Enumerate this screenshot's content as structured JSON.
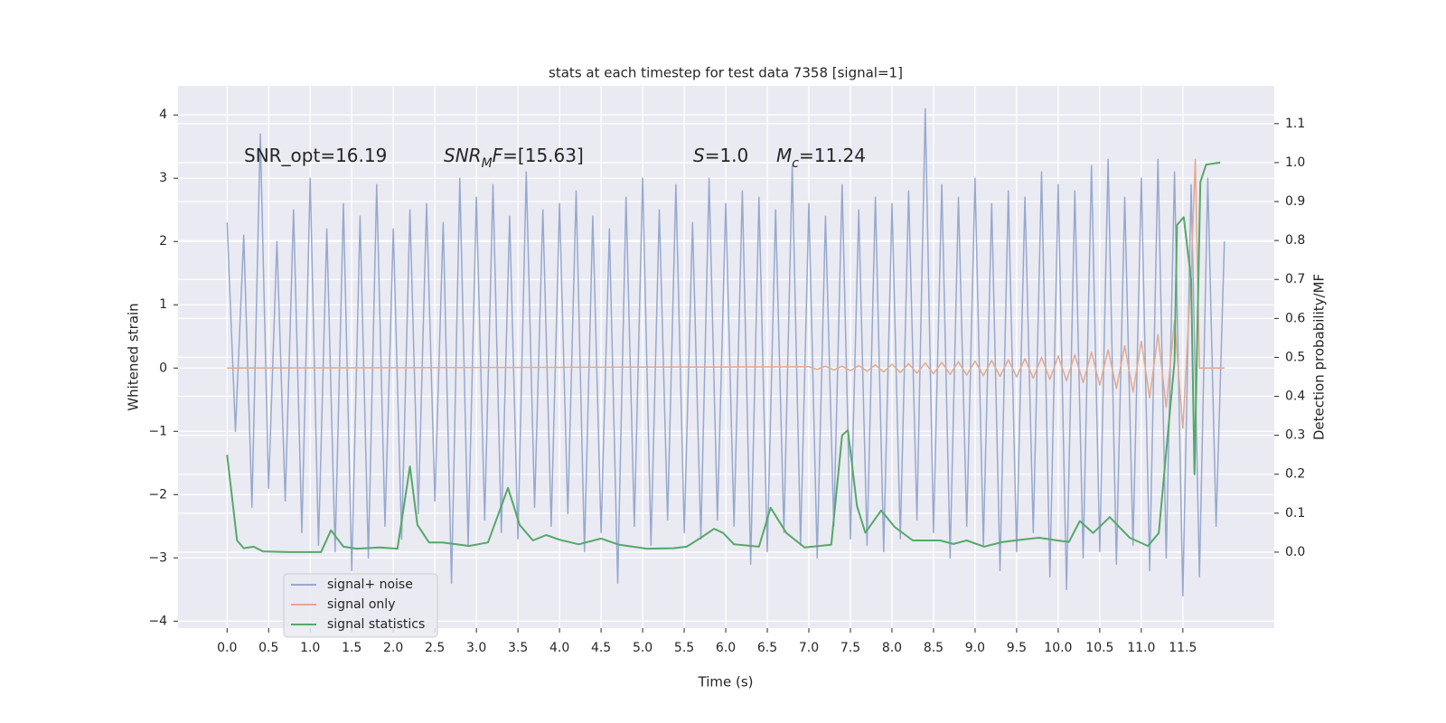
{
  "chart_data": {
    "type": "line",
    "title": "stats at each timestep for test data 7358 [signal=1]",
    "x_label": "Time (s)",
    "y_label": "Whitened strain",
    "y2_label": "Detection probability/MF",
    "annotations": [
      {
        "segments": [
          {
            "text": "SNR_opt=16.19"
          }
        ]
      },
      {
        "segments": [
          {
            "text": "SNR",
            "italic": true
          },
          {
            "text": "M",
            "italic": true,
            "sub": true
          },
          {
            "text": "F",
            "italic": true
          },
          {
            "text": "=[15.63]"
          }
        ]
      },
      {
        "segments": [
          {
            "text": "S",
            "italic": true
          },
          {
            "text": "=1.0"
          }
        ]
      },
      {
        "segments": [
          {
            "text": "M",
            "italic": true
          },
          {
            "text": "c",
            "italic": true,
            "sub": true
          },
          {
            "text": "=11.24"
          }
        ]
      }
    ],
    "xlim": [
      -0.59,
      12.6
    ],
    "ylim": [
      -4.11,
      4.46
    ],
    "y2lim": [
      -0.195,
      1.197
    ],
    "xticks": [
      {
        "value": 0,
        "label": "0.0"
      },
      0.5,
      {
        "value": 1,
        "label": "1.0"
      },
      1.5,
      {
        "value": 2,
        "label": "2.0"
      },
      2.5,
      {
        "value": 3,
        "label": "3.0"
      },
      3.5,
      {
        "value": 4,
        "label": "4.0"
      },
      4.5,
      {
        "value": 5,
        "label": "5.0"
      },
      5.5,
      {
        "value": 6,
        "label": "6.0"
      },
      6.5,
      {
        "value": 7,
        "label": "7.0"
      },
      7.5,
      {
        "value": 8,
        "label": "8.0"
      },
      8.5,
      {
        "value": 9,
        "label": "9.0"
      },
      9.5,
      {
        "value": 10,
        "label": "10.0"
      },
      10.5,
      {
        "value": 11,
        "label": "11.0"
      },
      11.5
    ],
    "yticks": [
      {
        "value": -4,
        "label": "−4"
      },
      {
        "value": -3,
        "label": "−3"
      },
      {
        "value": -2,
        "label": "−2"
      },
      {
        "value": -1,
        "label": "−1"
      },
      0,
      1,
      2,
      3,
      4
    ],
    "y2ticks": [
      {
        "value": 0,
        "label": "0.0"
      },
      0.1,
      0.2,
      0.3,
      0.4,
      0.5,
      0.6,
      0.7,
      0.8,
      0.9,
      {
        "value": 1,
        "label": "1.0"
      },
      1.1
    ],
    "grid": true,
    "legend": "lower left",
    "series": [
      {
        "name": "signal+ noise",
        "color": "#97a9cf",
        "x": [
          0,
          0.1,
          0.2,
          0.3,
          0.4,
          0.5,
          0.6,
          0.7,
          0.8,
          0.9,
          1,
          1.1,
          1.2,
          1.3,
          1.4,
          1.5,
          1.6,
          1.7,
          1.8,
          1.9,
          2,
          2.1,
          2.2,
          2.3,
          2.4,
          2.5,
          2.6,
          2.7,
          2.8,
          2.9,
          3,
          3.1,
          3.2,
          3.3,
          3.4,
          3.5,
          3.6,
          3.7,
          3.8,
          3.9,
          4,
          4.1,
          4.2,
          4.3,
          4.4,
          4.5,
          4.6,
          4.7,
          4.8,
          4.9,
          5,
          5.1,
          5.2,
          5.3,
          5.4,
          5.5,
          5.6,
          5.7,
          5.8,
          5.9,
          6,
          6.1,
          6.2,
          6.3,
          6.4,
          6.5,
          6.6,
          6.7,
          6.8,
          6.9,
          7,
          7.1,
          7.2,
          7.3,
          7.4,
          7.5,
          7.6,
          7.7,
          7.8,
          7.9,
          8,
          8.1,
          8.2,
          8.3,
          8.4,
          8.5,
          8.6,
          8.7,
          8.8,
          8.9,
          9,
          9.1,
          9.2,
          9.3,
          9.4,
          9.5,
          9.6,
          9.7,
          9.8,
          9.9,
          10,
          10.1,
          10.2,
          10.3,
          10.4,
          10.5,
          10.6,
          10.7,
          10.8,
          10.9,
          11,
          11.1,
          11.2,
          11.3,
          11.4,
          11.5,
          11.6,
          11.7,
          11.8,
          11.9,
          12
        ],
        "values": [
          2.3,
          -1.0,
          2.1,
          -2.2,
          3.7,
          -1.9,
          2.0,
          -2.1,
          2.5,
          -2.6,
          3.0,
          -2.8,
          2.2,
          -2.9,
          2.6,
          -3.2,
          2.4,
          -3.0,
          2.9,
          -2.5,
          2.2,
          -2.7,
          2.5,
          -2.3,
          2.6,
          -2.1,
          2.3,
          -3.4,
          3.0,
          -2.8,
          2.7,
          -2.4,
          2.9,
          -2.6,
          2.4,
          -2.7,
          3.1,
          -2.2,
          2.5,
          -2.5,
          2.6,
          -2.3,
          2.8,
          -2.9,
          2.4,
          -2.6,
          2.2,
          -3.4,
          2.7,
          -2.5,
          3.0,
          -2.8,
          2.5,
          -2.4,
          2.9,
          -2.6,
          2.3,
          -2.7,
          3.0,
          -2.4,
          2.6,
          -2.5,
          2.8,
          -3.1,
          2.7,
          -2.9,
          2.5,
          -2.6,
          3.2,
          -2.8,
          2.6,
          -3.0,
          2.4,
          -2.5,
          2.9,
          -2.7,
          2.5,
          -2.8,
          2.7,
          -2.9,
          2.6,
          -2.7,
          2.8,
          -2.4,
          4.1,
          -2.6,
          2.9,
          -3.0,
          2.7,
          -2.5,
          3.0,
          -2.8,
          2.6,
          -3.2,
          2.8,
          -2.9,
          2.7,
          -2.6,
          3.1,
          -3.3,
          2.9,
          -3.5,
          2.8,
          -3.0,
          3.2,
          -2.9,
          3.3,
          -3.1,
          2.7,
          -2.8,
          3.0,
          -3.2,
          3.3,
          -3.0,
          3.1,
          -3.6,
          2.9,
          -3.3,
          3.0,
          -2.5,
          2.0
        ]
      },
      {
        "name": "signal only",
        "color": "#e4a98f",
        "x": [
          0,
          7,
          7.1,
          7.2,
          7.3,
          7.4,
          7.5,
          7.6,
          7.7,
          7.8,
          7.9,
          8,
          8.1,
          8.2,
          8.3,
          8.4,
          8.5,
          8.6,
          8.7,
          8.8,
          8.9,
          9,
          9.1,
          9.2,
          9.3,
          9.4,
          9.5,
          9.6,
          9.7,
          9.8,
          9.9,
          10,
          10.1,
          10.2,
          10.3,
          10.4,
          10.5,
          10.6,
          10.7,
          10.8,
          10.9,
          11,
          11.1,
          11.2,
          11.3,
          11.4,
          11.5,
          11.6,
          11.65,
          11.7,
          12
        ],
        "values": [
          0,
          0.02,
          -0.02,
          0.03,
          -0.03,
          0.03,
          -0.04,
          0.04,
          -0.05,
          0.05,
          -0.06,
          0.06,
          -0.07,
          0.07,
          -0.08,
          0.08,
          -0.09,
          0.09,
          -0.1,
          0.1,
          -0.11,
          0.11,
          -0.12,
          0.12,
          -0.13,
          0.13,
          -0.14,
          0.15,
          -0.16,
          0.17,
          -0.18,
          0.19,
          -0.2,
          0.21,
          -0.23,
          0.25,
          -0.27,
          0.29,
          -0.32,
          0.35,
          -0.38,
          0.42,
          -0.47,
          0.53,
          -0.62,
          0.75,
          -0.95,
          1.5,
          3.3,
          0,
          0
        ]
      },
      {
        "name": "signal statistics",
        "color": "#55a868",
        "axis": "y2",
        "x": [
          0,
          0.12,
          0.2,
          0.32,
          0.43,
          0.75,
          1.13,
          1.25,
          1.4,
          1.56,
          1.84,
          2.05,
          2.2,
          2.29,
          2.43,
          2.59,
          2.91,
          3.14,
          3.38,
          3.52,
          3.68,
          3.84,
          4.0,
          4.23,
          4.5,
          4.72,
          5.05,
          5.37,
          5.53,
          5.7,
          5.86,
          5.97,
          6.1,
          6.4,
          6.54,
          6.73,
          6.95,
          7.27,
          7.4,
          7.47,
          7.58,
          7.68,
          7.87,
          8.03,
          8.25,
          8.58,
          8.74,
          8.9,
          9.11,
          9.33,
          9.55,
          9.77,
          9.99,
          10.13,
          10.26,
          10.42,
          10.62,
          10.86,
          11.08,
          11.21,
          11.4,
          11.43,
          11.51,
          11.6,
          11.64,
          11.71,
          11.78,
          11.95
        ],
        "values": [
          0.25,
          0.03,
          0.01,
          0.014,
          0.002,
          0.0,
          0.0,
          0.056,
          0.014,
          0.009,
          0.012,
          0.009,
          0.22,
          0.07,
          0.025,
          0.025,
          0.016,
          0.025,
          0.165,
          0.07,
          0.03,
          0.044,
          0.032,
          0.02,
          0.035,
          0.019,
          0.009,
          0.01,
          0.014,
          0.037,
          0.06,
          0.049,
          0.02,
          0.014,
          0.114,
          0.049,
          0.012,
          0.019,
          0.3,
          0.313,
          0.118,
          0.05,
          0.107,
          0.065,
          0.03,
          0.03,
          0.021,
          0.03,
          0.014,
          0.026,
          0.032,
          0.037,
          0.03,
          0.026,
          0.08,
          0.049,
          0.09,
          0.037,
          0.016,
          0.049,
          0.49,
          0.84,
          0.86,
          0.7,
          0.2,
          0.95,
          0.995,
          1.0
        ]
      }
    ]
  }
}
